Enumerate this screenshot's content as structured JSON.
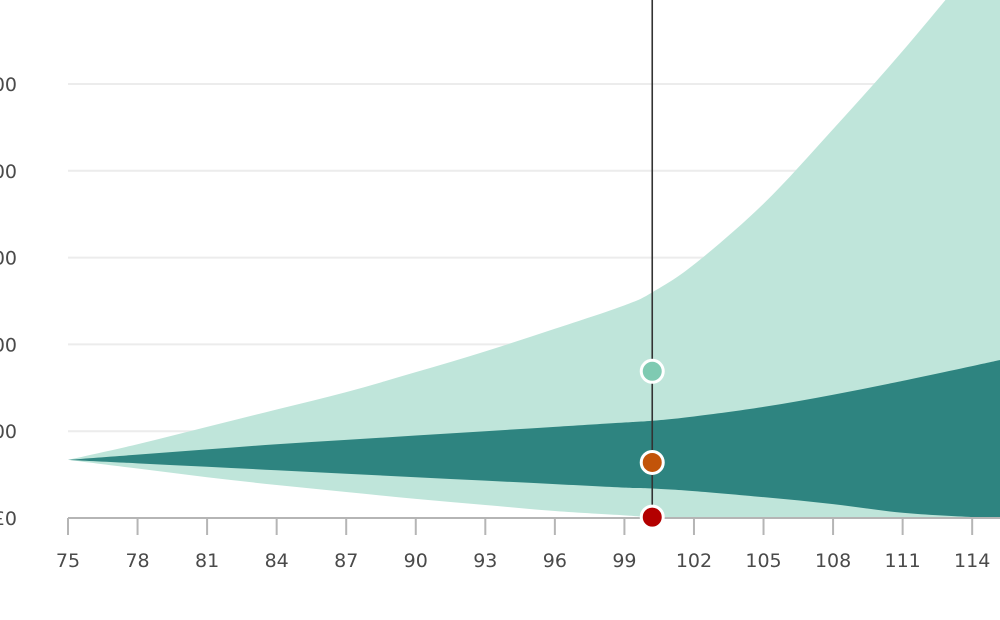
{
  "chart_data": {
    "type": "area",
    "title": "",
    "xlabel": "",
    "ylabel": "",
    "x_ticks": [
      "75",
      "78",
      "81",
      "84",
      "87",
      "90",
      "93",
      "96",
      "99",
      "102",
      "105",
      "108",
      "111",
      "114"
    ],
    "y_ticks_visible": [
      "00",
      "00",
      "00",
      "00",
      "00",
      "£0"
    ],
    "grid": true,
    "x": [
      75,
      78,
      81,
      84,
      87,
      90,
      93,
      96,
      99,
      100.2,
      102,
      105,
      108,
      111,
      114,
      115.2
    ],
    "series": [
      {
        "role": "outer-band",
        "color": "#bfe5da",
        "upper": [
          0.67,
          0.85,
          1.05,
          1.25,
          1.45,
          1.68,
          1.92,
          2.18,
          2.45,
          2.6,
          2.92,
          3.62,
          4.48,
          5.38,
          6.35,
          6.82
        ],
        "lower": [
          0.67,
          0.57,
          0.47,
          0.38,
          0.3,
          0.22,
          0.15,
          0.08,
          0.03,
          0.01,
          0.005,
          0.0,
          0.0,
          0.0,
          0.0,
          0.0
        ]
      },
      {
        "role": "inner-band",
        "color": "#2e8480",
        "upper": [
          0.67,
          0.73,
          0.79,
          0.85,
          0.9,
          0.95,
          1.0,
          1.05,
          1.1,
          1.12,
          1.17,
          1.28,
          1.42,
          1.58,
          1.75,
          1.82
        ],
        "lower": [
          0.67,
          0.63,
          0.59,
          0.55,
          0.51,
          0.47,
          0.43,
          0.39,
          0.35,
          0.34,
          0.31,
          0.24,
          0.16,
          0.06,
          0.01,
          0.0
        ]
      }
    ],
    "cursor": {
      "x": 100.2,
      "markers": [
        {
          "name": "upper",
          "y": 1.69,
          "color": "#7fcab2"
        },
        {
          "name": "median",
          "y": 0.64,
          "color": "#c2540a"
        },
        {
          "name": "lower",
          "y": 0.01,
          "color": "#b30000"
        }
      ]
    },
    "xlim": [
      75,
      115.2
    ],
    "ylim": [
      0,
      6.0
    ]
  }
}
